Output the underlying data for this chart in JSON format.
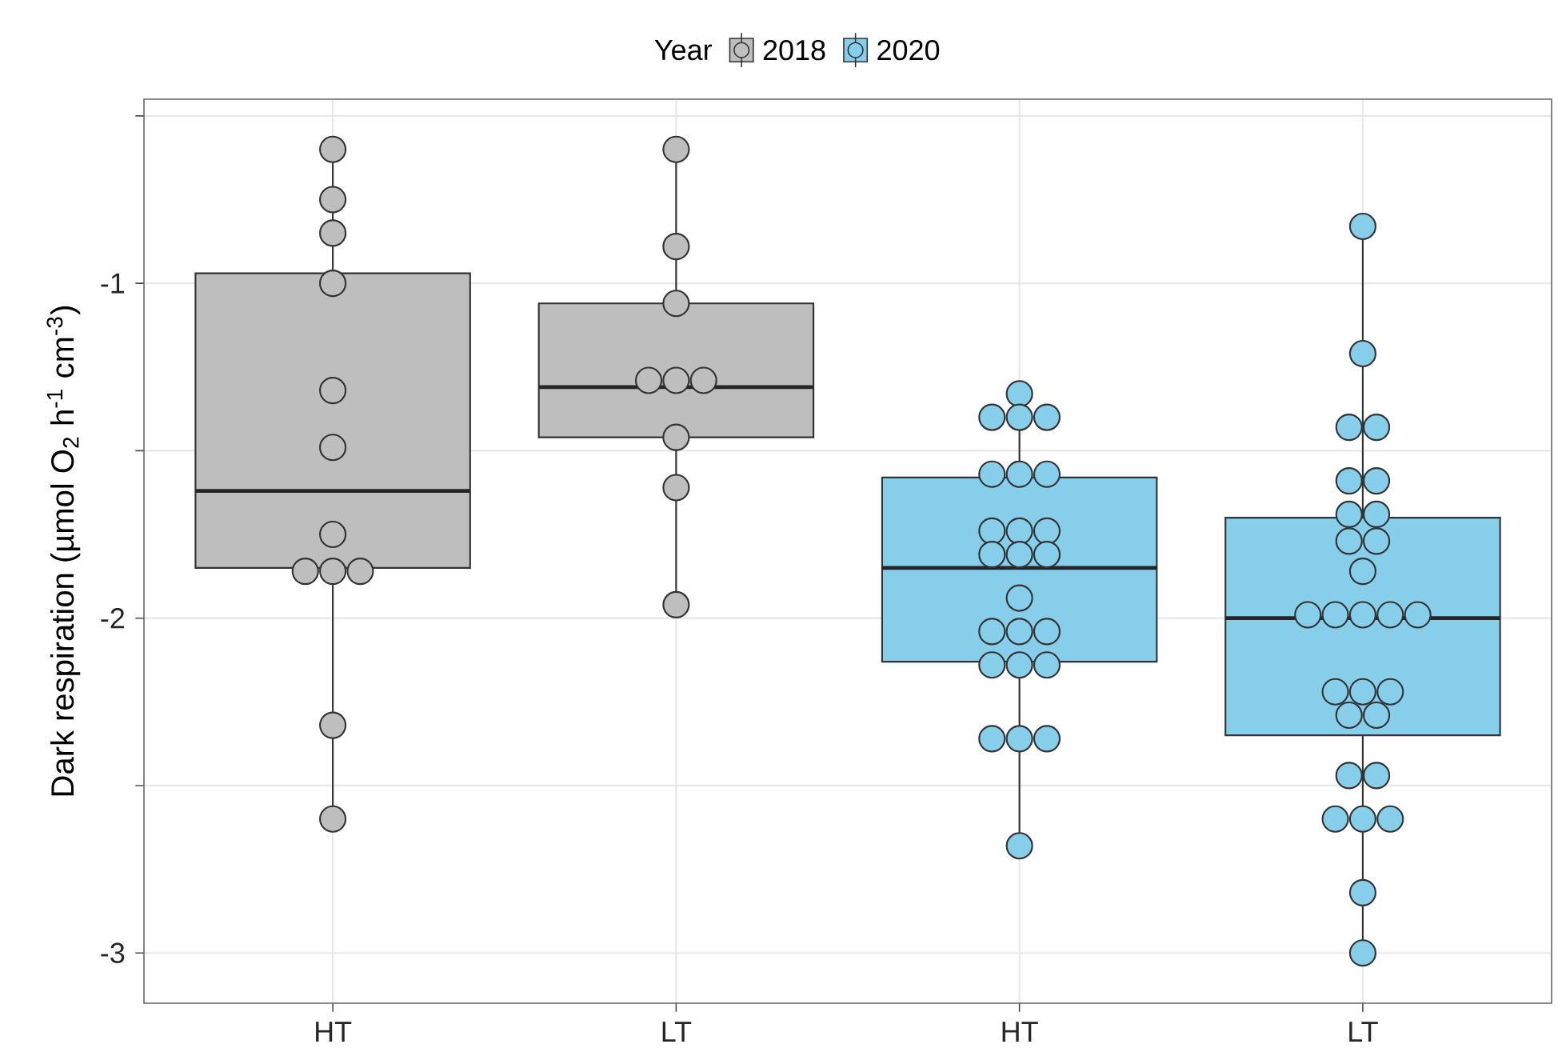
{
  "chart_data": [
    {
      "type": "box",
      "ylabel": "Dark respiration (µmol O$_{2}$ h$^{-1}$ cm$^{-3}$)",
      "legend_title": "Year",
      "legend": "top",
      "grid": true,
      "marker": "circle",
      "categories": [
        "HT",
        "LT"
      ],
      "ylim": [
        -3.15,
        -0.45
      ],
      "yticks": [
        -3,
        {
          "value": -2.5,
          "label": null
        },
        -2,
        {
          "value": -1.5,
          "label": null
        },
        -1,
        {
          "value": -0.5,
          "label": null
        }
      ],
      "series": [
        {
          "name": "2018",
          "color": "#bebebe",
          "boxes": [
            {
              "low": -2.6,
              "q1": -1.85,
              "median": -1.62,
              "q3": -0.97,
              "high": -0.6
            },
            {
              "low": -1.96,
              "q1": -1.46,
              "median": -1.31,
              "q3": -1.06,
              "high": -0.6
            }
          ]
        },
        {
          "type": "scatter",
          "color": "#bebebe",
          "x": [
            "HT",
            "HT",
            "HT",
            "HT",
            "HT",
            "HT",
            "HT",
            "HT",
            "HT",
            "HT",
            "HT",
            "HT"
          ],
          "values": [
            -0.6,
            -0.75,
            -0.85,
            -1.0,
            -1.32,
            -1.49,
            -1.75,
            -1.86,
            -1.86,
            -1.86,
            -2.32,
            -2.6
          ]
        },
        {
          "type": "scatter",
          "color": "#bebebe",
          "x": [
            "LT",
            "LT",
            "LT",
            "LT",
            "LT",
            "LT",
            "LT",
            "LT",
            "LT"
          ],
          "values": [
            -0.6,
            -0.89,
            -1.06,
            -1.29,
            -1.29,
            -1.29,
            -1.46,
            -1.61,
            -1.96
          ]
        }
      ]
    },
    {
      "type": "box",
      "legend": "top",
      "grid": true,
      "marker": "circle",
      "tick_labels": "x",
      "categories": [
        "HT",
        "LT"
      ],
      "ylim": [
        -3.15,
        -0.45
      ],
      "yticks": [
        -3,
        {
          "value": -2.5,
          "label": null
        },
        -2,
        {
          "value": -1.5,
          "label": null
        },
        -1,
        {
          "value": -0.5,
          "label": null
        }
      ],
      "series": [
        {
          "name": "2020",
          "color": "#87ceeb",
          "boxes": [
            {
              "low": -2.68,
              "q1": -2.13,
              "median": -1.85,
              "q3": -1.58,
              "high": -1.33
            },
            {
              "low": -3.0,
              "q1": -2.35,
              "median": -2.0,
              "q3": -1.7,
              "high": -0.83
            }
          ]
        },
        {
          "type": "scatter",
          "color": "#87ceeb",
          "x": [
            "HT",
            "HT",
            "HT",
            "HT",
            "HT",
            "HT",
            "HT",
            "HT",
            "HT",
            "HT",
            "HT",
            "HT",
            "HT",
            "HT",
            "HT",
            "HT",
            "HT",
            "HT",
            "HT",
            "HT",
            "HT",
            "HT",
            "HT",
            "HT"
          ],
          "values": [
            -1.33,
            -1.4,
            -1.4,
            -1.4,
            -1.57,
            -1.57,
            -1.57,
            -1.74,
            -1.74,
            -1.74,
            -1.81,
            -1.81,
            -1.81,
            -1.94,
            -2.04,
            -2.04,
            -2.04,
            -2.14,
            -2.14,
            -2.14,
            -2.36,
            -2.36,
            -2.36,
            -2.68
          ]
        },
        {
          "type": "scatter",
          "color": "#87ceeb",
          "x": [
            "LT",
            "LT",
            "LT",
            "LT",
            "LT",
            "LT",
            "LT",
            "LT",
            "LT",
            "LT",
            "LT",
            "LT",
            "LT",
            "LT",
            "LT",
            "LT",
            "LT",
            "LT",
            "LT",
            "LT",
            "LT",
            "LT",
            "LT",
            "LT",
            "LT",
            "LT",
            "LT",
            "LT"
          ],
          "values": [
            -0.83,
            -1.21,
            -1.43,
            -1.43,
            -1.59,
            -1.59,
            -1.69,
            -1.69,
            -1.77,
            -1.77,
            -1.86,
            -1.99,
            -1.99,
            -1.99,
            -1.99,
            -1.99,
            -2.22,
            -2.22,
            -2.22,
            -2.29,
            -2.29,
            -2.47,
            -2.47,
            -2.6,
            -2.6,
            -2.6,
            -2.82,
            -3.0
          ]
        }
      ]
    }
  ]
}
